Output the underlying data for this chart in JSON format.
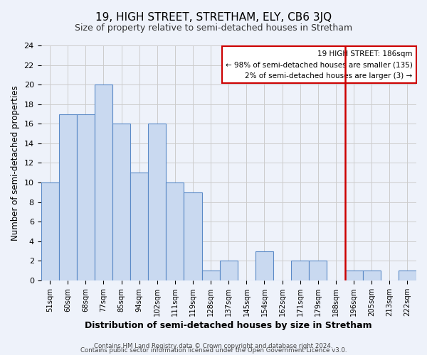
{
  "title": "19, HIGH STREET, STRETHAM, ELY, CB6 3JQ",
  "subtitle": "Size of property relative to semi-detached houses in Stretham",
  "xlabel": "Distribution of semi-detached houses by size in Stretham",
  "ylabel": "Number of semi-detached properties",
  "bar_labels": [
    "51sqm",
    "60sqm",
    "68sqm",
    "77sqm",
    "85sqm",
    "94sqm",
    "102sqm",
    "111sqm",
    "119sqm",
    "128sqm",
    "137sqm",
    "145sqm",
    "154sqm",
    "162sqm",
    "171sqm",
    "179sqm",
    "188sqm",
    "196sqm",
    "205sqm",
    "213sqm",
    "222sqm"
  ],
  "bar_values": [
    10,
    17,
    17,
    20,
    16,
    11,
    16,
    10,
    9,
    1,
    2,
    0,
    3,
    0,
    2,
    2,
    0,
    1,
    1,
    0,
    1
  ],
  "bar_color": "#c9d9f0",
  "bar_edge_color": "#5b8ac7",
  "ylim": [
    0,
    24
  ],
  "yticks": [
    0,
    2,
    4,
    6,
    8,
    10,
    12,
    14,
    16,
    18,
    20,
    22,
    24
  ],
  "red_line_index": 16,
  "red_line_color": "#cc0000",
  "annotation_title": "19 HIGH STREET: 186sqm",
  "annotation_line1": "← 98% of semi-detached houses are smaller (135)",
  "annotation_line2": "2% of semi-detached houses are larger (3) →",
  "annotation_box_edge": "#cc0000",
  "footer_line1": "Contains HM Land Registry data © Crown copyright and database right 2024.",
  "footer_line2": "Contains public sector information licensed under the Open Government Licence v3.0.",
  "bg_color": "#eef2fa",
  "plot_bg_color": "#eef2fa"
}
